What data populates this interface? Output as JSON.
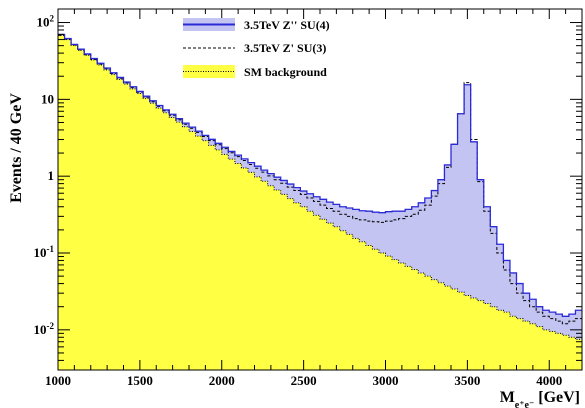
{
  "chart_data": {
    "type": "area",
    "title": "",
    "xlabel": "M",
    "xlabel_sub": "e⁺e⁻",
    "xlabel_unit": " [GeV]",
    "ylabel": "Events / 40 GeV",
    "xlim": [
      1000,
      4200
    ],
    "ylim": [
      0.003,
      150
    ],
    "y_scale": "log",
    "grid": false,
    "legend_position": "top-center",
    "x_ticks": [
      1000,
      1500,
      2000,
      2500,
      3000,
      3500,
      4000
    ],
    "x_tick_labels": [
      "1000",
      "1500",
      "2000",
      "2500",
      "3000",
      "3500",
      "4000"
    ],
    "y_ticks": [
      0.01,
      0.1,
      1,
      10,
      100
    ],
    "y_tick_labels": [
      {
        "base": "10",
        "exp": "-2"
      },
      {
        "base": "10",
        "exp": "-1"
      },
      {
        "base": "1",
        "exp": ""
      },
      {
        "base": "10",
        "exp": ""
      },
      {
        "base": "10",
        "exp": "2"
      }
    ],
    "bin_width": 40,
    "bin_start": 1000,
    "series": [
      {
        "name": "3.5TeV Z'' SU(4)",
        "style": "filled-line",
        "color": "#2b2bd6",
        "fill": "#c4c4f2",
        "values": [
          70.0,
          62.0,
          52.0,
          45.0,
          39.0,
          34.0,
          29.5,
          25.6,
          22.2,
          19.3,
          16.8,
          14.6,
          12.7,
          11.0,
          9.6,
          8.3,
          7.3,
          6.4,
          5.6,
          4.9,
          4.35,
          3.85,
          3.4,
          3.02,
          2.68,
          2.38,
          2.1,
          1.88,
          1.68,
          1.5,
          1.35,
          1.2,
          1.08,
          0.97,
          0.88,
          0.79,
          0.71,
          0.64,
          0.59,
          0.54,
          0.5,
          0.46,
          0.43,
          0.4,
          0.385,
          0.37,
          0.355,
          0.35,
          0.34,
          0.335,
          0.345,
          0.35,
          0.35,
          0.37,
          0.4,
          0.45,
          0.52,
          0.65,
          0.9,
          1.4,
          2.6,
          6.5,
          15.5,
          2.8,
          0.9,
          0.4,
          0.22,
          0.13,
          0.08,
          0.055,
          0.04,
          0.03,
          0.025,
          0.02,
          0.018,
          0.017,
          0.016,
          0.015,
          0.016,
          0.018
        ]
      },
      {
        "name": "3.5TeV Z' SU(3)",
        "style": "dashed-line",
        "color": "#000000",
        "values": [
          68.0,
          60.5,
          51.0,
          44.0,
          38.2,
          33.2,
          28.8,
          25.0,
          21.7,
          18.8,
          16.4,
          14.2,
          12.4,
          10.7,
          9.3,
          8.1,
          7.1,
          6.2,
          5.4,
          4.75,
          4.2,
          3.72,
          3.28,
          2.9,
          2.57,
          2.28,
          2.02,
          1.8,
          1.6,
          1.42,
          1.27,
          1.13,
          1.01,
          0.9,
          0.81,
          0.72,
          0.65,
          0.58,
          0.52,
          0.47,
          0.42,
          0.38,
          0.35,
          0.32,
          0.3,
          0.28,
          0.27,
          0.26,
          0.255,
          0.25,
          0.26,
          0.27,
          0.28,
          0.3,
          0.32,
          0.36,
          0.42,
          0.55,
          0.8,
          1.3,
          2.6,
          6.5,
          16.5,
          3.0,
          0.85,
          0.35,
          0.18,
          0.1,
          0.06,
          0.04,
          0.03,
          0.024,
          0.02,
          0.017,
          0.015,
          0.014,
          0.013,
          0.012,
          0.013,
          0.014
        ]
      },
      {
        "name": "SM background",
        "style": "filled-dotted",
        "color": "#000000",
        "fill": "#ffff44",
        "values": [
          68.0,
          60.0,
          50.5,
          43.5,
          37.5,
          32.5,
          28.0,
          24.2,
          21.0,
          18.2,
          15.8,
          13.7,
          11.9,
          10.3,
          8.9,
          7.7,
          6.7,
          5.8,
          5.05,
          4.4,
          3.82,
          3.32,
          2.9,
          2.52,
          2.2,
          1.92,
          1.67,
          1.46,
          1.28,
          1.12,
          0.98,
          0.86,
          0.75,
          0.66,
          0.58,
          0.51,
          0.45,
          0.4,
          0.35,
          0.31,
          0.275,
          0.245,
          0.22,
          0.195,
          0.175,
          0.155,
          0.14,
          0.125,
          0.112,
          0.1,
          0.091,
          0.082,
          0.074,
          0.067,
          0.061,
          0.055,
          0.05,
          0.045,
          0.041,
          0.037,
          0.034,
          0.031,
          0.028,
          0.026,
          0.024,
          0.022,
          0.02,
          0.018,
          0.017,
          0.015,
          0.014,
          0.013,
          0.012,
          0.011,
          0.01,
          0.0095,
          0.009,
          0.0085,
          0.008,
          0.0075
        ]
      }
    ]
  }
}
